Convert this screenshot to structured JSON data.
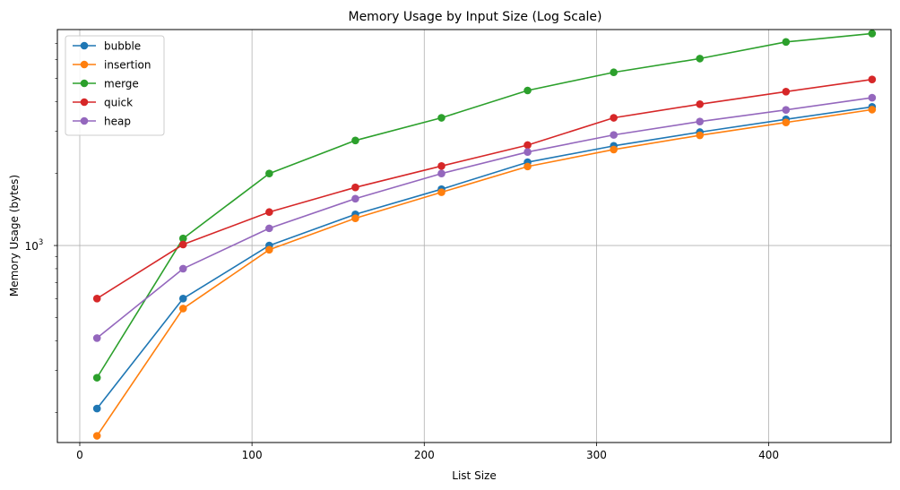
{
  "chart_data": {
    "type": "line",
    "title": "Memory Usage by Input Size (Log Scale)",
    "xlabel": "List Size",
    "ylabel": "Memory Usage (bytes)",
    "xlim": [
      -13,
      471
    ],
    "ylim": [
      150,
      8000
    ],
    "yscale": "log",
    "grid": true,
    "legend": "top-left",
    "x_ticks": [
      0,
      100,
      200,
      300,
      400
    ],
    "y_major_ticks": [
      {
        "value": 1000,
        "base": "10",
        "exp": "3"
      }
    ],
    "y_minor_ticks": [
      200,
      300,
      400,
      500,
      600,
      700,
      800,
      900,
      2000,
      3000,
      4000,
      5000,
      6000,
      7000
    ],
    "x": [
      10,
      60,
      110,
      160,
      210,
      260,
      310,
      360,
      410,
      460
    ],
    "series": [
      {
        "name": "bubble",
        "color": "#1f77b4",
        "values": [
          208,
          600,
          1000,
          1350,
          1720,
          2230,
          2610,
          2980,
          3370,
          3800
        ]
      },
      {
        "name": "insertion",
        "color": "#ff7f0e",
        "values": [
          160,
          545,
          960,
          1300,
          1670,
          2140,
          2520,
          2890,
          3270,
          3700
        ]
      },
      {
        "name": "merge",
        "color": "#2ca02c",
        "values": [
          280,
          1070,
          2000,
          2750,
          3420,
          4450,
          5300,
          6050,
          7100,
          7700
        ]
      },
      {
        "name": "quick",
        "color": "#d62728",
        "values": [
          600,
          1010,
          1380,
          1750,
          2150,
          2630,
          3420,
          3900,
          4400,
          4950
        ]
      },
      {
        "name": "heap",
        "color": "#9467bd",
        "values": [
          410,
          800,
          1180,
          1570,
          2000,
          2460,
          2900,
          3300,
          3690,
          4150
        ]
      }
    ]
  }
}
